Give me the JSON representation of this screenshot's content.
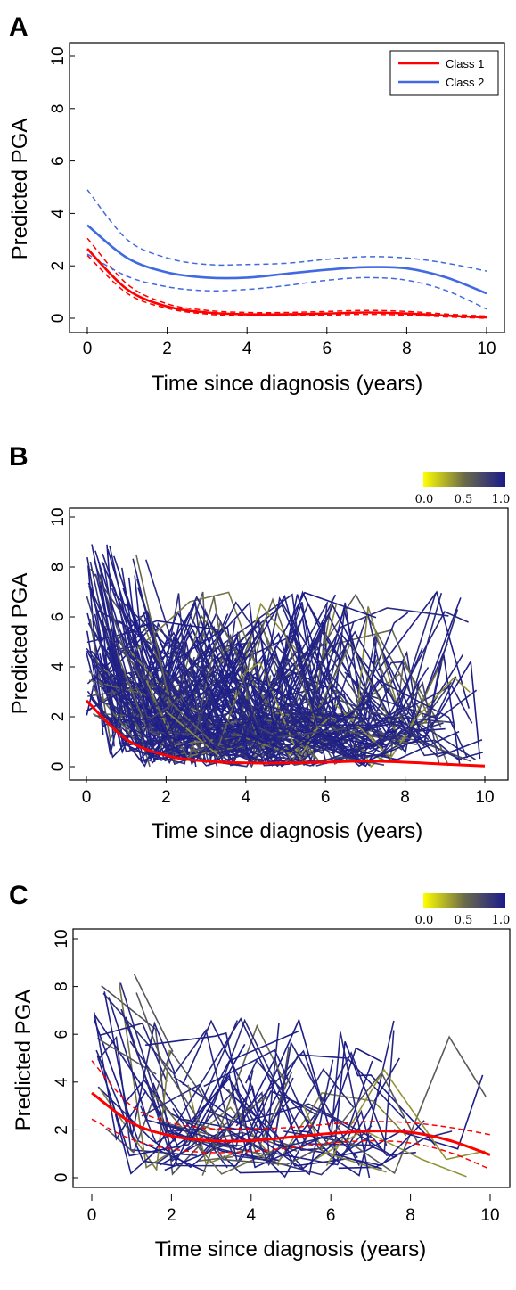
{
  "chart_data": [
    {
      "panel": "A",
      "type": "line",
      "xlabel": "Time since diagnosis (years)",
      "ylabel": "Predicted PGA",
      "xlim": [
        0,
        10
      ],
      "ylim": [
        0,
        10
      ],
      "xticks": [
        0,
        2,
        4,
        6,
        8,
        10
      ],
      "yticks": [
        0,
        2,
        4,
        6,
        8,
        10
      ],
      "legend": {
        "position": "top-right",
        "entries": [
          "Class 1",
          "Class 2"
        ]
      },
      "series": [
        {
          "name": "Class 1",
          "color": "#ff0000",
          "x": [
            0,
            1,
            2,
            3,
            4,
            5,
            6,
            7,
            8,
            9,
            10
          ],
          "values": [
            2.65,
            1.1,
            0.45,
            0.22,
            0.15,
            0.15,
            0.18,
            0.22,
            0.18,
            0.1,
            0.03
          ],
          "lower": [
            2.4,
            0.95,
            0.38,
            0.16,
            0.1,
            0.1,
            0.12,
            0.15,
            0.12,
            0.05,
            0.0
          ],
          "upper": [
            3.05,
            1.3,
            0.55,
            0.3,
            0.22,
            0.22,
            0.26,
            0.3,
            0.26,
            0.16,
            0.08
          ]
        },
        {
          "name": "Class 2",
          "color": "#4169e1",
          "x": [
            0,
            1,
            2,
            3,
            4,
            5,
            6,
            7,
            8,
            9,
            10
          ],
          "values": [
            3.55,
            2.3,
            1.75,
            1.55,
            1.55,
            1.7,
            1.85,
            1.95,
            1.9,
            1.55,
            0.95
          ],
          "lower": [
            2.45,
            1.6,
            1.2,
            1.05,
            1.1,
            1.25,
            1.45,
            1.55,
            1.45,
            1.05,
            0.35
          ],
          "upper": [
            4.9,
            3.0,
            2.3,
            2.05,
            2.05,
            2.1,
            2.25,
            2.35,
            2.3,
            2.1,
            1.8
          ]
        }
      ]
    },
    {
      "panel": "B",
      "type": "line",
      "xlabel": "Time since diagnosis (years)",
      "ylabel": "Predicted PGA",
      "xlim": [
        0,
        10
      ],
      "ylim": [
        0,
        10
      ],
      "xticks": [
        0,
        2,
        4,
        6,
        8,
        10
      ],
      "yticks": [
        0,
        2,
        4,
        6,
        8,
        10
      ],
      "colorbar": {
        "ticks": [
          "0.0",
          "0.5",
          "1.0"
        ],
        "from": "#ffff00",
        "mid": "#6b6b4b",
        "to": "#1a1a8c"
      },
      "individual_trajectories": "many",
      "series": [
        {
          "color": "#ff0000",
          "x": [
            0,
            1,
            2,
            3,
            4,
            5,
            6,
            7,
            8,
            9,
            10
          ],
          "values": [
            2.65,
            1.1,
            0.45,
            0.22,
            0.15,
            0.15,
            0.18,
            0.22,
            0.18,
            0.1,
            0.03
          ]
        }
      ]
    },
    {
      "panel": "C",
      "type": "line",
      "xlabel": "Time since diagnosis (years)",
      "ylabel": "Predicted PGA",
      "xlim": [
        0,
        10
      ],
      "ylim": [
        0,
        10
      ],
      "xticks": [
        0,
        2,
        4,
        6,
        8,
        10
      ],
      "yticks": [
        0,
        2,
        4,
        6,
        8,
        10
      ],
      "colorbar": {
        "ticks": [
          "0.0",
          "0.5",
          "1.0"
        ],
        "from": "#ffff00",
        "mid": "#6b6b4b",
        "to": "#1a1a8c"
      },
      "individual_trajectories": "some",
      "series": [
        {
          "color": "#ff0000",
          "x": [
            0,
            1,
            2,
            3,
            4,
            5,
            6,
            7,
            8,
            9,
            10
          ],
          "values": [
            3.55,
            2.3,
            1.75,
            1.55,
            1.55,
            1.7,
            1.85,
            1.95,
            1.9,
            1.55,
            0.95
          ],
          "lower": [
            2.45,
            1.6,
            1.2,
            1.05,
            1.1,
            1.25,
            1.45,
            1.55,
            1.45,
            1.05,
            0.35
          ],
          "upper": [
            4.9,
            3.0,
            2.3,
            2.05,
            2.05,
            2.1,
            2.25,
            2.35,
            2.3,
            2.1,
            1.8
          ]
        }
      ]
    }
  ]
}
